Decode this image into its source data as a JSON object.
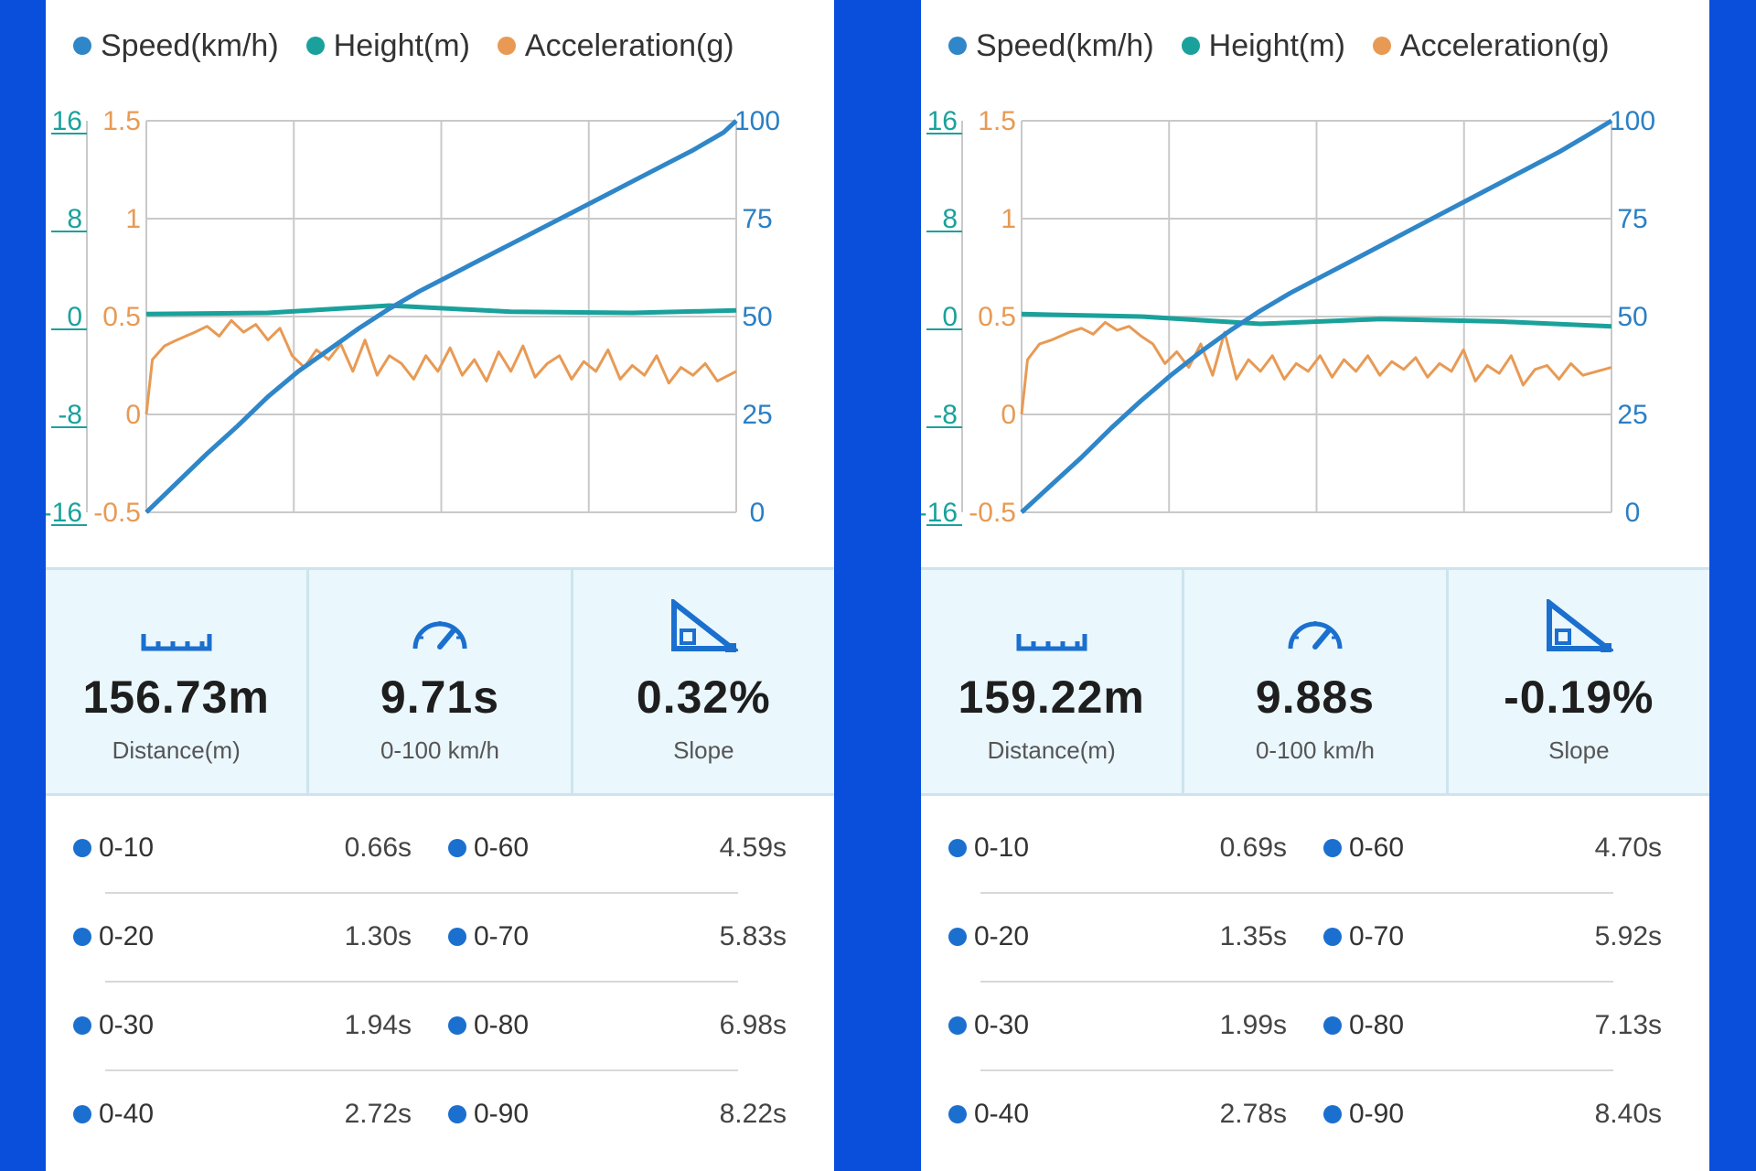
{
  "colors": {
    "background": "#0a4fdc",
    "speed": "#2f86c8",
    "height": "#1aa19c",
    "acceleration": "#e89a54",
    "height_axis": "#1aa19c",
    "accel_axis": "#e89a54",
    "speed_axis": "#2a7fc4",
    "stat_bg": "#eaf7fd",
    "icon": "#1b6fcf"
  },
  "legend": [
    {
      "label": "Speed(km/h)",
      "color": "#2f86c8"
    },
    {
      "label": "Height(m)",
      "color": "#1aa19c"
    },
    {
      "label": "Acceleration(g)",
      "color": "#e89a54"
    }
  ],
  "panels": [
    {
      "chart_data": {
        "type": "line",
        "height_ticks": [
          "16",
          "8",
          "0",
          "-8",
          "-16"
        ],
        "accel_ticks": [
          "1.5",
          "1",
          "0.5",
          "0",
          "-0.5"
        ],
        "speed_ticks": [
          "100",
          "75",
          "50",
          "25",
          "0"
        ],
        "speed_ylim": [
          0,
          100
        ],
        "height_ylim": [
          -16,
          16
        ],
        "accel_ylim": [
          -0.5,
          1.5
        ],
        "grid": true,
        "series": [
          {
            "key": "speed",
            "x": [
              0,
              0.5,
              1,
              1.5,
              2,
              2.5,
              3,
              3.5,
              4,
              4.5,
              5,
              5.5,
              6,
              6.5,
              7,
              7.5,
              8,
              8.5,
              9,
              9.5,
              9.71
            ],
            "values": [
              0,
              7.5,
              15,
              22,
              29.5,
              36,
              41.5,
              47,
              52,
              56.5,
              60.5,
              64.5,
              68.5,
              72.5,
              76.5,
              80.5,
              84.5,
              88.5,
              92.5,
              97,
              100
            ]
          },
          {
            "key": "height",
            "x": [
              0,
              2,
              4,
              6,
              8,
              9.71
            ],
            "values": [
              0.2,
              0.3,
              0.9,
              0.4,
              0.3,
              0.5
            ]
          },
          {
            "key": "acceleration",
            "x": [
              0,
              0.1,
              0.3,
              0.5,
              0.8,
              1.0,
              1.2,
              1.4,
              1.6,
              1.8,
              2.0,
              2.2,
              2.4,
              2.6,
              2.8,
              3.0,
              3.2,
              3.4,
              3.6,
              3.8,
              4.0,
              4.2,
              4.4,
              4.6,
              4.8,
              5.0,
              5.2,
              5.4,
              5.6,
              5.8,
              6.0,
              6.2,
              6.4,
              6.6,
              6.8,
              7.0,
              7.2,
              7.4,
              7.6,
              7.8,
              8.0,
              8.2,
              8.4,
              8.6,
              8.8,
              9.0,
              9.2,
              9.4,
              9.71
            ],
            "values": [
              0.0,
              0.28,
              0.35,
              0.38,
              0.42,
              0.45,
              0.4,
              0.48,
              0.42,
              0.46,
              0.38,
              0.44,
              0.3,
              0.24,
              0.33,
              0.28,
              0.36,
              0.22,
              0.38,
              0.2,
              0.3,
              0.26,
              0.18,
              0.3,
              0.22,
              0.34,
              0.2,
              0.28,
              0.17,
              0.32,
              0.22,
              0.35,
              0.19,
              0.26,
              0.3,
              0.18,
              0.27,
              0.22,
              0.33,
              0.18,
              0.25,
              0.2,
              0.3,
              0.16,
              0.24,
              0.2,
              0.26,
              0.17,
              0.22
            ]
          }
        ]
      },
      "stats": [
        {
          "icon": "ruler-icon",
          "value": "156.73m",
          "label": "Distance(m)"
        },
        {
          "icon": "speedometer-icon",
          "value": "9.71s",
          "label": "0-100 km/h"
        },
        {
          "icon": "slope-icon",
          "value": "0.32%",
          "label": "Slope"
        }
      ],
      "splits": [
        {
          "left": {
            "label": "0-10",
            "time": "0.66s"
          },
          "right": {
            "label": "0-60",
            "time": "4.59s"
          }
        },
        {
          "left": {
            "label": "0-20",
            "time": "1.30s"
          },
          "right": {
            "label": "0-70",
            "time": "5.83s"
          }
        },
        {
          "left": {
            "label": "0-30",
            "time": "1.94s"
          },
          "right": {
            "label": "0-80",
            "time": "6.98s"
          }
        },
        {
          "left": {
            "label": "0-40",
            "time": "2.72s"
          },
          "right": {
            "label": "0-90",
            "time": "8.22s"
          }
        }
      ]
    },
    {
      "chart_data": {
        "type": "line",
        "height_ticks": [
          "16",
          "8",
          "0",
          "-8",
          "-16"
        ],
        "accel_ticks": [
          "1.5",
          "1",
          "0.5",
          "0",
          "-0.5"
        ],
        "speed_ticks": [
          "100",
          "75",
          "50",
          "25",
          "0"
        ],
        "speed_ylim": [
          0,
          100
        ],
        "height_ylim": [
          -16,
          16
        ],
        "accel_ylim": [
          -0.5,
          1.5
        ],
        "grid": true,
        "series": [
          {
            "key": "speed",
            "x": [
              0,
              0.5,
              1,
              1.5,
              2,
              2.5,
              3,
              3.5,
              4,
              4.5,
              5,
              5.5,
              6,
              6.5,
              7,
              7.5,
              8,
              8.5,
              9,
              9.5,
              9.88
            ],
            "values": [
              0,
              7,
              14,
              21.5,
              28.5,
              35,
              41,
              46.5,
              51.5,
              56,
              60,
              64,
              68,
              72,
              76,
              80,
              84,
              88,
              92,
              96.5,
              100
            ]
          },
          {
            "key": "height",
            "x": [
              0,
              2,
              4,
              6,
              8,
              9.88
            ],
            "values": [
              0.2,
              0.0,
              -0.6,
              -0.2,
              -0.4,
              -0.8
            ]
          },
          {
            "key": "acceleration",
            "x": [
              0,
              0.1,
              0.3,
              0.5,
              0.8,
              1.0,
              1.2,
              1.4,
              1.6,
              1.8,
              2.0,
              2.2,
              2.4,
              2.6,
              2.8,
              3.0,
              3.2,
              3.4,
              3.6,
              3.8,
              4.0,
              4.2,
              4.4,
              4.6,
              4.8,
              5.0,
              5.2,
              5.4,
              5.6,
              5.8,
              6.0,
              6.2,
              6.4,
              6.6,
              6.8,
              7.0,
              7.2,
              7.4,
              7.6,
              7.8,
              8.0,
              8.2,
              8.4,
              8.6,
              8.8,
              9.0,
              9.2,
              9.4,
              9.88
            ],
            "values": [
              0.0,
              0.28,
              0.36,
              0.38,
              0.42,
              0.44,
              0.41,
              0.47,
              0.43,
              0.45,
              0.4,
              0.36,
              0.26,
              0.32,
              0.24,
              0.36,
              0.2,
              0.42,
              0.18,
              0.28,
              0.22,
              0.3,
              0.18,
              0.26,
              0.22,
              0.3,
              0.19,
              0.28,
              0.22,
              0.3,
              0.2,
              0.27,
              0.23,
              0.29,
              0.19,
              0.26,
              0.22,
              0.33,
              0.17,
              0.25,
              0.21,
              0.3,
              0.15,
              0.23,
              0.25,
              0.18,
              0.26,
              0.2,
              0.24
            ]
          }
        ]
      },
      "stats": [
        {
          "icon": "ruler-icon",
          "value": "159.22m",
          "label": "Distance(m)"
        },
        {
          "icon": "speedometer-icon",
          "value": "9.88s",
          "label": "0-100 km/h"
        },
        {
          "icon": "slope-icon",
          "value": "-0.19%",
          "label": "Slope"
        }
      ],
      "splits": [
        {
          "left": {
            "label": "0-10",
            "time": "0.69s"
          },
          "right": {
            "label": "0-60",
            "time": "4.70s"
          }
        },
        {
          "left": {
            "label": "0-20",
            "time": "1.35s"
          },
          "right": {
            "label": "0-70",
            "time": "5.92s"
          }
        },
        {
          "left": {
            "label": "0-30",
            "time": "1.99s"
          },
          "right": {
            "label": "0-80",
            "time": "7.13s"
          }
        },
        {
          "left": {
            "label": "0-40",
            "time": "2.78s"
          },
          "right": {
            "label": "0-90",
            "time": "8.40s"
          }
        }
      ]
    }
  ]
}
